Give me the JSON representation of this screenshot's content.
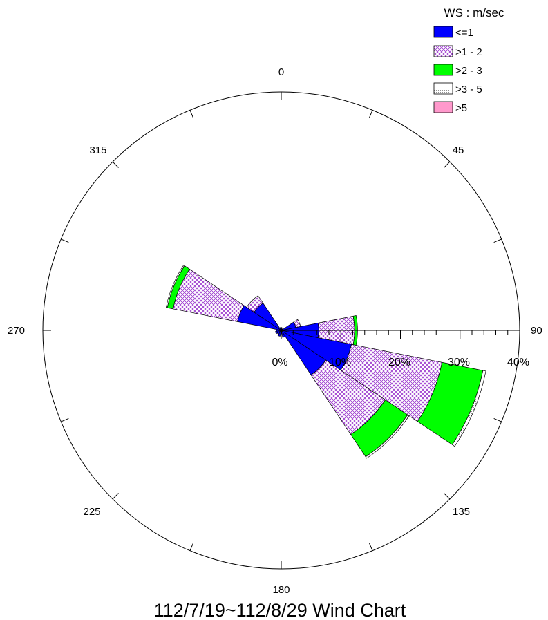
{
  "chart_data": {
    "type": "wind-rose",
    "title": "112/7/19~112/8/29 Wind Chart",
    "legend": {
      "title": "WS : m/sec",
      "placement": "top-right",
      "entries": [
        {
          "label": "<=1",
          "color": "#0000ff",
          "pattern": "solid"
        },
        {
          "label": ">1 - 2",
          "color": "#9933cc",
          "pattern": "crosshatch"
        },
        {
          "label": ">2 - 3",
          "color": "#00ff00",
          "pattern": "solid"
        },
        {
          "label": ">3 - 5",
          "color": "#808080",
          "pattern": "dots"
        },
        {
          "label": ">5",
          "color": "#ff99cc",
          "pattern": "solid"
        }
      ]
    },
    "direction_labels": [
      "0",
      "45",
      "90",
      "135",
      "180",
      "225",
      "270",
      "315"
    ],
    "radial_axis": {
      "ticks": [
        "0%",
        "10%",
        "20%",
        "30%",
        "40%"
      ],
      "tick_values": [
        0,
        10,
        20,
        30,
        40
      ],
      "range": [
        0,
        40
      ],
      "unit": "%"
    },
    "sector_width_deg": 22.5,
    "series": [
      {
        "name": "<=1",
        "values": [
          0.5,
          0.3,
          0.3,
          2.5,
          6.3,
          12.0,
          9.0,
          1.2,
          0.5,
          1.0,
          0.8,
          1.0,
          0.8,
          7.5,
          5.5,
          0.5
        ]
      },
      {
        "name": ">1 - 2",
        "values": [
          0,
          0,
          0,
          0.8,
          6.0,
          15.5,
          12.0,
          0,
          0,
          0,
          0,
          0,
          0,
          11.0,
          1.5,
          0
        ]
      },
      {
        "name": ">2 - 3",
        "values": [
          0,
          0,
          0,
          0,
          0.5,
          7.0,
          4.5,
          0,
          0,
          0,
          0,
          0,
          0,
          1.0,
          0,
          0
        ]
      },
      {
        "name": ">3 - 5",
        "values": [
          0,
          0,
          0,
          0,
          0,
          0.5,
          0.3,
          0,
          0,
          0,
          0,
          0,
          0,
          0.2,
          0,
          0
        ]
      },
      {
        "name": ">5",
        "values": [
          0,
          0,
          0,
          0,
          0,
          0,
          0,
          0,
          0,
          0,
          0,
          0,
          0,
          0,
          0,
          0
        ]
      }
    ]
  }
}
